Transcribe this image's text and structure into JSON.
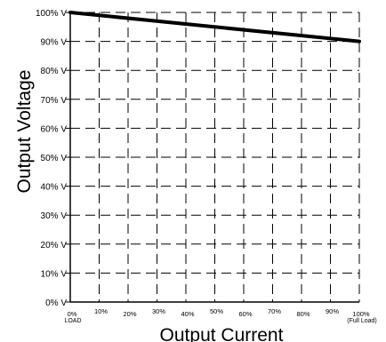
{
  "chart_data": {
    "type": "line",
    "xlabel": "Output Current",
    "ylabel": "Output Voltage",
    "x_ticks": [
      "0%",
      "10%",
      "20%",
      "30%",
      "40%",
      "50%",
      "60%",
      "70%",
      "80%",
      "90%",
      "100%"
    ],
    "x_tick_sublabels": {
      "0": "LOAD",
      "10": "(Full Load)"
    },
    "y_ticks": [
      "0% V",
      "10% V",
      "20% V",
      "30% V",
      "40% V",
      "50% V",
      "60% V",
      "70% V",
      "80% V",
      "90% V",
      "100% V"
    ],
    "xlim": [
      0,
      100
    ],
    "ylim": [
      0,
      100
    ],
    "grid": true,
    "series": [
      {
        "x": [
          0,
          100
        ],
        "y": [
          100,
          90
        ],
        "color": "#000000"
      }
    ]
  }
}
